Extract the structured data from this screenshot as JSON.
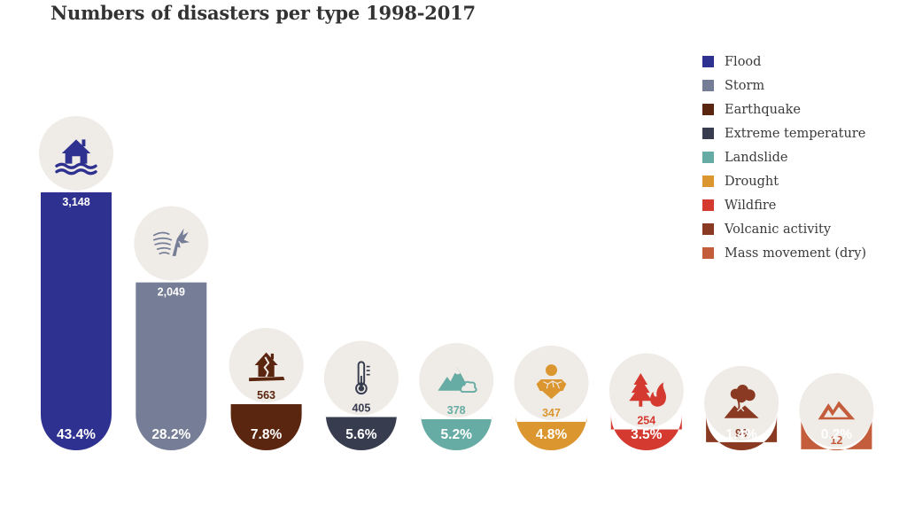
{
  "chart_data": {
    "type": "bar",
    "title": "Numbers of disasters per type 1998-2017",
    "categories": [
      "Flood",
      "Storm",
      "Earthquake",
      "Extreme temperature",
      "Landslide",
      "Drought",
      "Wildfire",
      "Volcanic activity",
      "Mass movement (dry)"
    ],
    "values": [
      3148,
      2049,
      563,
      405,
      378,
      347,
      254,
      99,
      12
    ],
    "value_labels": [
      "3,148",
      "2,049",
      "563",
      "405",
      "378",
      "347",
      "254",
      "99",
      "12"
    ],
    "percent_labels": [
      "43.4%",
      "28.2%",
      "7.8%",
      "5.6%",
      "5.2%",
      "4.8%",
      "3.5%",
      "1.4%",
      "0.2%"
    ],
    "colors": [
      "#2e318f",
      "#767d96",
      "#5a2610",
      "#373d4f",
      "#67aca4",
      "#dc962f",
      "#d43a30",
      "#8a3a22",
      "#c35d3c"
    ],
    "icons": [
      "flood-house-icon",
      "storm-wind-tree-icon",
      "earthquake-house-icon",
      "thermometer-icon",
      "landslide-icon",
      "drought-icon",
      "wildfire-icon",
      "volcano-icon",
      "mass-movement-icon"
    ],
    "legend_position": "top-right",
    "grid": false
  }
}
